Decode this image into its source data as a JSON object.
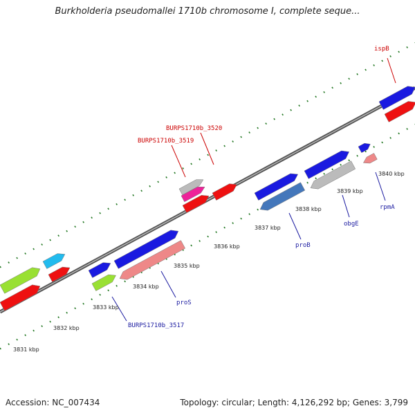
{
  "title": "Burkholderia pseudomallei 1710b chromosome I, complete seque...",
  "footer": {
    "accession": "Accession: NC_007434",
    "summary": "Topology: circular; Length: 4,126,292 bp; Genes: 3,799"
  },
  "colors": {
    "red": "#ee1111",
    "blue": "#1a1ae0",
    "green": "#99e033",
    "cyan": "#22bbee",
    "pink": "#ee8888",
    "gray": "#bbbbbb",
    "steel": "#4477bb",
    "magenta": "#ee2299",
    "label_red": "#cc0000",
    "label_blue": "#1a1aa0",
    "tick_green": "#227722"
  },
  "ticks": [
    {
      "label": "3831 kbp"
    },
    {
      "label": "3832 kbp"
    },
    {
      "label": "3833 kbp"
    },
    {
      "label": "3834 kbp"
    },
    {
      "label": "3835 kbp"
    },
    {
      "label": "3836 kbp"
    },
    {
      "label": "3837 kbp"
    },
    {
      "label": "3838 kbp"
    },
    {
      "label": "3839 kbp"
    },
    {
      "label": "3840 kbp"
    }
  ],
  "gene_labels": [
    {
      "text": "ispB",
      "color": "red"
    },
    {
      "text": "BURPS1710b_3520",
      "color": "red"
    },
    {
      "text": "BURPS1710b_3519",
      "color": "red"
    },
    {
      "text": "proS",
      "color": "blue"
    },
    {
      "text": "BURPS1710b_3517",
      "color": "blue"
    },
    {
      "text": "proB",
      "color": "blue"
    },
    {
      "text": "obgE",
      "color": "blue"
    },
    {
      "text": "rpmA",
      "color": "blue"
    }
  ]
}
